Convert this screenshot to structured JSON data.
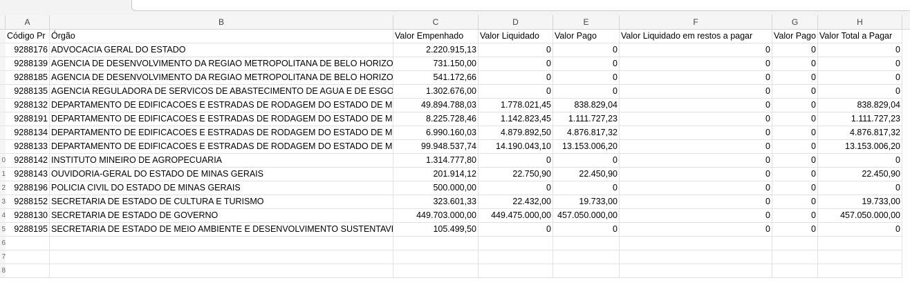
{
  "columns": [
    "A",
    "B",
    "C",
    "D",
    "E",
    "F",
    "G",
    "H"
  ],
  "row_numbers": [
    "",
    "",
    "",
    "",
    "",
    "",
    "",
    "",
    "",
    "0",
    "1",
    "2",
    "3",
    "4",
    "5",
    "6",
    "7",
    "8"
  ],
  "header": [
    "Código Pr",
    "Órgão",
    "Valor Empenhado",
    "Valor Liquidado",
    "Valor Pago",
    "Valor Liquidado em restos a pagar",
    "Valor Pago",
    "Valor Total a Pagar"
  ],
  "rows": [
    [
      "9288176",
      "ADVOCACIA GERAL DO ESTADO",
      "2.220.915,13",
      "0",
      "0",
      "0",
      "0",
      "0"
    ],
    [
      "9288139",
      "AGENCIA DE DESENVOLVIMENTO DA REGIAO METROPOLITANA DE BELO HORIZON",
      "731.150,00",
      "0",
      "0",
      "0",
      "0",
      "0"
    ],
    [
      "9288185",
      "AGENCIA DE DESENVOLVIMENTO DA REGIAO METROPOLITANA DE BELO HORIZON",
      "541.172,66",
      "0",
      "0",
      "0",
      "0",
      "0"
    ],
    [
      "9288135",
      "AGENCIA REGULADORA DE SERVICOS DE ABASTECIMENTO DE AGUA E DE ESGOTAI",
      "1.302.676,00",
      "0",
      "0",
      "0",
      "0",
      "0"
    ],
    [
      "9288132",
      "DEPARTAMENTO DE EDIFICACOES E ESTRADAS DE RODAGEM DO ESTADO DE MINA",
      "49.894.788,03",
      "1.778.021,45",
      "838.829,04",
      "0",
      "0",
      "838.829,04"
    ],
    [
      "9288191",
      "DEPARTAMENTO DE EDIFICACOES E ESTRADAS DE RODAGEM DO ESTADO DE MINA",
      "8.225.728,46",
      "1.142.823,45",
      "1.111.727,23",
      "0",
      "0",
      "1.111.727,23"
    ],
    [
      "9288134",
      "DEPARTAMENTO DE EDIFICACOES E ESTRADAS DE RODAGEM DO ESTADO DE MINA",
      "6.990.160,03",
      "4.879.892,50",
      "4.876.817,32",
      "0",
      "0",
      "4.876.817,32"
    ],
    [
      "9288133",
      "DEPARTAMENTO DE EDIFICACOES E ESTRADAS DE RODAGEM DO ESTADO DE MINA",
      "99.948.537,74",
      "14.190.043,10",
      "13.153.006,20",
      "0",
      "0",
      "13.153.006,20"
    ],
    [
      "9288142",
      "INSTITUTO MINEIRO DE AGROPECUARIA",
      "1.314.777,80",
      "0",
      "0",
      "0",
      "0",
      "0"
    ],
    [
      "9288143",
      "OUVIDORIA-GERAL DO ESTADO DE MINAS GERAIS",
      "201.914,12",
      "22.750,90",
      "22.450,90",
      "0",
      "0",
      "22.450,90"
    ],
    [
      "9288196",
      "POLICIA CIVIL DO ESTADO DE MINAS GERAIS",
      "500.000,00",
      "0",
      "0",
      "0",
      "0",
      "0"
    ],
    [
      "9288152",
      "SECRETARIA DE ESTADO DE CULTURA E TURISMO",
      "323.601,33",
      "22.432,00",
      "19.733,00",
      "0",
      "0",
      "19.733,00"
    ],
    [
      "9288130",
      "SECRETARIA DE ESTADO DE GOVERNO",
      "449.703.000,00",
      "449.475.000,00",
      "457.050.000,00",
      "0",
      "0",
      "457.050.000,00"
    ],
    [
      "9288195",
      "SECRETARIA DE ESTADO DE MEIO AMBIENTE E DESENVOLVIMENTO SUSTENTAVEL",
      "105.499,50",
      "0",
      "0",
      "0",
      "0",
      "0"
    ]
  ]
}
